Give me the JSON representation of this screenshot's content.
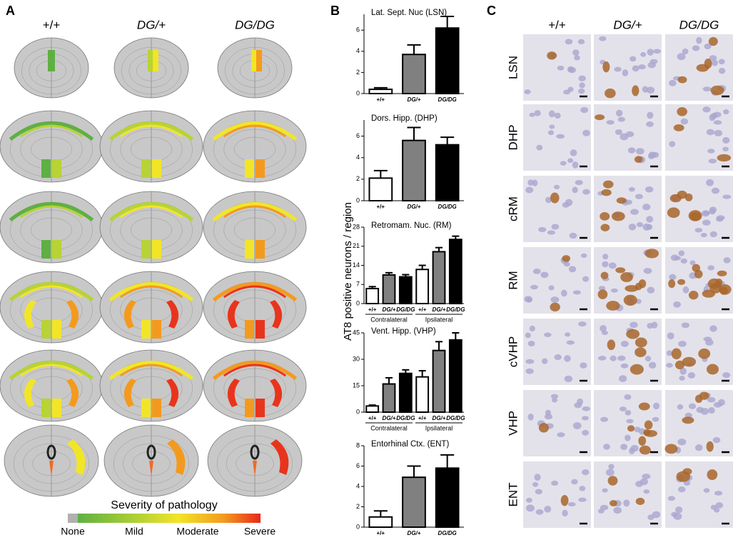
{
  "panel_a": {
    "label": "A",
    "columns": [
      "+/+",
      "DG/+",
      "DG/DG"
    ],
    "legend": {
      "title": "Severity of pathology",
      "labels": [
        "None",
        "Mild",
        "Moderate",
        "Severe"
      ]
    }
  },
  "panel_b": {
    "label": "B",
    "y_label": "AT8 positive neurons / region"
  },
  "chart_data": [
    {
      "type": "bar",
      "title": "Lat. Sept. Nuc (LSN)",
      "categories": [
        "+/+",
        "DG/+",
        "DG/DG"
      ],
      "values": [
        0.4,
        3.7,
        6.2
      ],
      "errors": [
        0.15,
        0.9,
        1.1
      ],
      "colors": [
        "#ffffff",
        "#808080",
        "#000000"
      ],
      "ylim": [
        0,
        7.5
      ],
      "yticks": [
        0,
        2,
        4,
        6
      ]
    },
    {
      "type": "bar",
      "title": "Dors. Hipp. (DHP)",
      "categories": [
        "+/+",
        "DG/+",
        "DG/DG"
      ],
      "values": [
        2.1,
        5.6,
        5.2
      ],
      "errors": [
        0.7,
        1.2,
        0.7
      ],
      "colors": [
        "#ffffff",
        "#808080",
        "#000000"
      ],
      "ylim": [
        0,
        7.5
      ],
      "yticks": [
        0,
        2,
        4,
        6
      ]
    },
    {
      "type": "bar",
      "title": "Retromam. Nuc. (RM)",
      "categories": [
        "+/+",
        "DG/+",
        "DG/DG",
        "+/+",
        "DG/+",
        "DG/DG"
      ],
      "group_labels": [
        "Contralateral",
        "Ipsilateral"
      ],
      "values": [
        5.5,
        10.5,
        9.8,
        12.5,
        19,
        23.5
      ],
      "errors": [
        0.7,
        0.8,
        0.8,
        1.5,
        1.5,
        1.2
      ],
      "colors": [
        "#ffffff",
        "#808080",
        "#000000",
        "#ffffff",
        "#808080",
        "#000000"
      ],
      "ylim": [
        0,
        28
      ],
      "yticks": [
        0,
        7,
        14,
        21,
        28
      ]
    },
    {
      "type": "bar",
      "title": "Vent. Hipp. (VHP)",
      "categories": [
        "+/+",
        "DG/+",
        "DG/DG",
        "+/+",
        "DG/+",
        "DG/DG"
      ],
      "group_labels": [
        "Contralateral",
        "Ipsilateral"
      ],
      "values": [
        3.5,
        16,
        22,
        20,
        35,
        41
      ],
      "errors": [
        0.5,
        3.5,
        2,
        3.5,
        5,
        4
      ],
      "colors": [
        "#ffffff",
        "#808080",
        "#000000",
        "#ffffff",
        "#808080",
        "#000000"
      ],
      "ylim": [
        0,
        45
      ],
      "yticks": [
        0,
        15,
        30,
        45
      ]
    },
    {
      "type": "bar",
      "title": "Entorhinal Ctx. (ENT)",
      "categories": [
        "+/+",
        "DG/+",
        "DG/DG"
      ],
      "values": [
        1.0,
        4.9,
        5.8
      ],
      "errors": [
        0.6,
        1.1,
        1.3
      ],
      "colors": [
        "#ffffff",
        "#808080",
        "#000000"
      ],
      "ylim": [
        0,
        8
      ],
      "yticks": [
        0,
        2,
        4,
        6,
        8
      ]
    }
  ],
  "panel_c": {
    "label": "C",
    "columns": [
      "+/+",
      "DG/+",
      "DG/DG"
    ],
    "rows": [
      "LSN",
      "DHP",
      "cRM",
      "RM",
      "cVHP",
      "VHP",
      "ENT"
    ]
  }
}
